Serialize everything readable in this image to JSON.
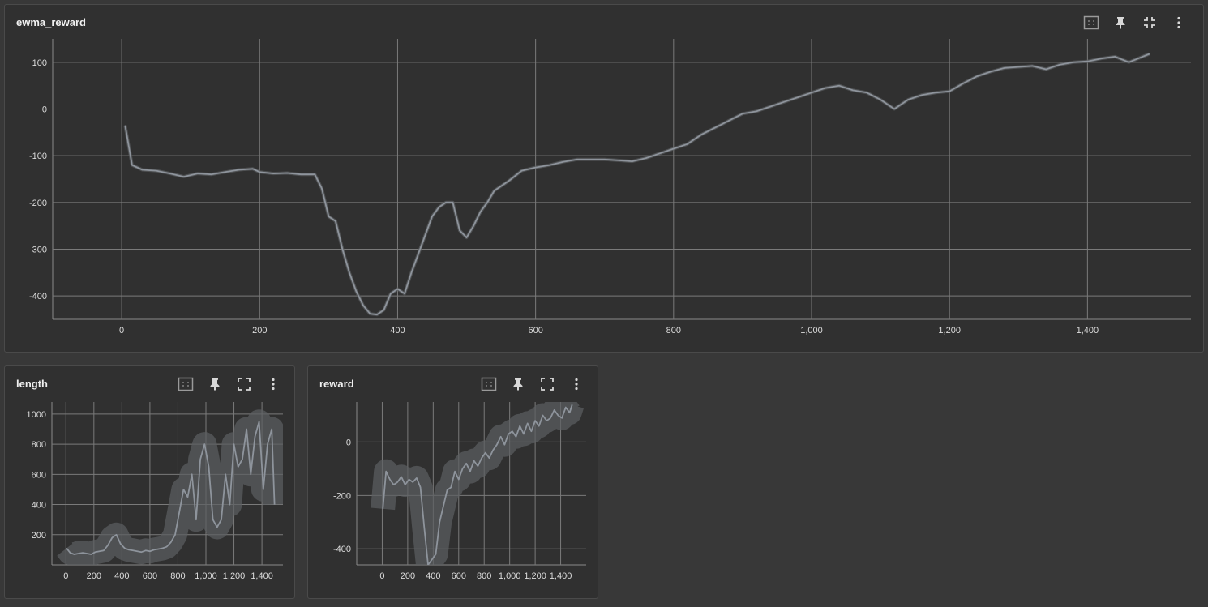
{
  "cards": {
    "main": {
      "title": "ewma_reward"
    },
    "length": {
      "title": "length"
    },
    "reward": {
      "title": "reward"
    }
  },
  "toolbar_icons": [
    "data-selection-icon",
    "pin-icon",
    "fullscreen-icon",
    "more-vert-icon"
  ],
  "colors": {
    "line": "#8e949c",
    "band": "#5c5f63",
    "grid": "#7a7a7a",
    "axis_text": "#dcdcdc",
    "bg": "#303030"
  },
  "chart_data": [
    {
      "id": "ewma_reward",
      "type": "line",
      "title": "ewma_reward",
      "xlabel": "",
      "ylabel": "",
      "xlim": [
        -100,
        1550
      ],
      "ylim": [
        -450,
        150
      ],
      "x_ticks": [
        "0",
        "200",
        "400",
        "600",
        "800",
        "1,000",
        "1,200",
        "1,400"
      ],
      "x_tick_values": [
        0,
        200,
        400,
        600,
        800,
        1000,
        1200,
        1400
      ],
      "y_ticks": [
        "100",
        "0",
        "-100",
        "-200",
        "-300",
        "-400"
      ],
      "y_tick_values": [
        100,
        0,
        -100,
        -200,
        -300,
        -400
      ],
      "grid": true,
      "series": [
        {
          "x": [
            5,
            15,
            30,
            50,
            70,
            90,
            110,
            130,
            150,
            170,
            190,
            200,
            220,
            240,
            260,
            280,
            290,
            300,
            310,
            320,
            330,
            340,
            350,
            360,
            370,
            380,
            390,
            400,
            410,
            420,
            430,
            440,
            450,
            460,
            470,
            480,
            490,
            500,
            510,
            520,
            530,
            540,
            560,
            580,
            600,
            620,
            640,
            660,
            680,
            700,
            720,
            740,
            760,
            780,
            800,
            820,
            840,
            860,
            880,
            900,
            920,
            940,
            960,
            980,
            1000,
            1020,
            1040,
            1060,
            1080,
            1100,
            1120,
            1140,
            1160,
            1180,
            1200,
            1220,
            1240,
            1260,
            1280,
            1300,
            1320,
            1340,
            1360,
            1380,
            1400,
            1420,
            1440,
            1460,
            1480,
            1490
          ],
          "y": [
            -35,
            -120,
            -130,
            -132,
            -138,
            -145,
            -138,
            -140,
            -135,
            -130,
            -128,
            -135,
            -138,
            -137,
            -140,
            -140,
            -170,
            -230,
            -240,
            -300,
            -350,
            -390,
            -420,
            -438,
            -440,
            -430,
            -395,
            -385,
            -395,
            -350,
            -310,
            -270,
            -230,
            -210,
            -200,
            -200,
            -260,
            -275,
            -250,
            -220,
            -200,
            -175,
            -155,
            -132,
            -125,
            -120,
            -113,
            -108,
            -108,
            -108,
            -110,
            -112,
            -105,
            -95,
            -85,
            -75,
            -55,
            -40,
            -25,
            -10,
            -5,
            5,
            15,
            25,
            35,
            45,
            50,
            40,
            35,
            20,
            0,
            20,
            30,
            35,
            38,
            55,
            70,
            80,
            88,
            90,
            92,
            85,
            95,
            100,
            102,
            108,
            112,
            100,
            112,
            118
          ]
        }
      ]
    },
    {
      "id": "length",
      "type": "line",
      "title": "length",
      "xlabel": "",
      "ylabel": "",
      "xlim": [
        -100,
        1550
      ],
      "ylim": [
        0,
        1080
      ],
      "x_ticks": [
        "0",
        "200",
        "400",
        "600",
        "800",
        "1,000",
        "1,200",
        "1,400"
      ],
      "x_tick_values": [
        0,
        200,
        400,
        600,
        800,
        1000,
        1200,
        1400
      ],
      "y_ticks": [
        "1000",
        "800",
        "600",
        "400",
        "200"
      ],
      "y_tick_values": [
        1000,
        800,
        600,
        400,
        200
      ],
      "grid": true,
      "series": [
        {
          "x": [
            5,
            30,
            60,
            90,
            120,
            150,
            180,
            210,
            240,
            270,
            300,
            330,
            360,
            390,
            420,
            450,
            480,
            510,
            540,
            570,
            600,
            630,
            660,
            690,
            720,
            750,
            780,
            810,
            840,
            870,
            900,
            930,
            960,
            990,
            1020,
            1050,
            1080,
            1110,
            1140,
            1170,
            1200,
            1230,
            1260,
            1290,
            1320,
            1350,
            1380,
            1410,
            1440,
            1470,
            1490
          ],
          "y": [
            110,
            80,
            70,
            75,
            80,
            75,
            70,
            85,
            90,
            95,
            130,
            180,
            200,
            140,
            110,
            100,
            95,
            90,
            85,
            95,
            90,
            100,
            105,
            110,
            120,
            150,
            200,
            350,
            500,
            450,
            600,
            300,
            700,
            800,
            650,
            300,
            250,
            300,
            600,
            400,
            800,
            650,
            700,
            900,
            600,
            850,
            950,
            500,
            800,
            900,
            400
          ]
        }
      ]
    },
    {
      "id": "reward",
      "type": "line",
      "title": "reward",
      "xlabel": "",
      "ylabel": "",
      "xlim": [
        -200,
        1600
      ],
      "ylim": [
        -460,
        150
      ],
      "x_ticks": [
        "0",
        "200",
        "400",
        "600",
        "800",
        "1,000",
        "1,200",
        "1,400"
      ],
      "x_tick_values": [
        0,
        200,
        400,
        600,
        800,
        1000,
        1200,
        1400
      ],
      "y_ticks": [
        "0",
        "-200",
        "-400"
      ],
      "y_tick_values": [
        0,
        -200,
        -400
      ],
      "grid": true,
      "series": [
        {
          "x": [
            5,
            30,
            60,
            90,
            120,
            150,
            180,
            210,
            240,
            270,
            300,
            330,
            360,
            390,
            420,
            450,
            480,
            510,
            540,
            570,
            600,
            630,
            660,
            690,
            720,
            750,
            780,
            810,
            840,
            870,
            900,
            930,
            960,
            990,
            1020,
            1050,
            1080,
            1110,
            1140,
            1170,
            1200,
            1230,
            1260,
            1290,
            1320,
            1350,
            1380,
            1410,
            1440,
            1470,
            1490
          ],
          "y": [
            -250,
            -110,
            -140,
            -160,
            -150,
            -130,
            -160,
            -140,
            -150,
            -135,
            -170,
            -320,
            -460,
            -440,
            -420,
            -300,
            -240,
            -180,
            -170,
            -110,
            -140,
            -100,
            -80,
            -110,
            -70,
            -90,
            -60,
            -40,
            -60,
            -30,
            -10,
            20,
            -10,
            30,
            40,
            20,
            60,
            30,
            70,
            40,
            80,
            60,
            100,
            80,
            90,
            120,
            100,
            90,
            130,
            110,
            140
          ]
        }
      ]
    }
  ]
}
